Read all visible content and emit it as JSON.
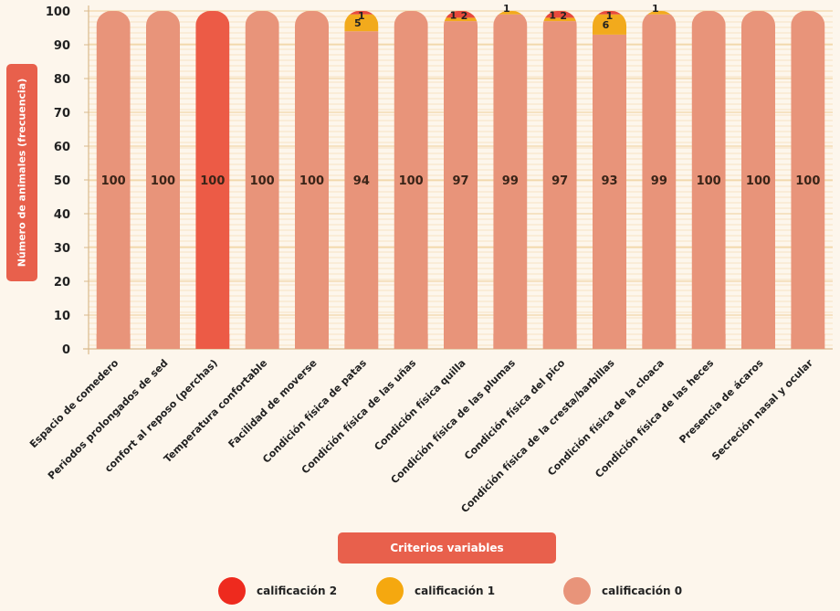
{
  "chart_data": {
    "type": "bar",
    "stacked": true,
    "categories": [
      "Espacio de comedero",
      "Periodos prolongados de sed",
      "confort al reposo (perchas)",
      "Temperatura confortable",
      "Facilidad de moverse",
      "Condición física de patas",
      "Condición física de las uñas",
      "Condición física quilla",
      "Condición física de las plumas",
      "Condición física del pico",
      "Condición física de la cresta/barbillas",
      "Condición física de la cloaca",
      "Condición física de las heces",
      "Presencia de ácaros",
      "Secreción nasal y ocular"
    ],
    "series": [
      {
        "name": "calificación 0",
        "color": "#e8947a",
        "values": [
          100,
          100,
          100,
          100,
          100,
          94,
          100,
          97,
          99,
          97,
          93,
          99,
          100,
          100,
          100
        ]
      },
      {
        "name": "calificación 1",
        "color": "#f2aa1c",
        "values": [
          0,
          0,
          0,
          0,
          0,
          5,
          0,
          1,
          1,
          1,
          6,
          1,
          0,
          0,
          0
        ]
      },
      {
        "name": "calificación 2",
        "color": "#e84a3c",
        "values": [
          0,
          0,
          0,
          0,
          0,
          1,
          0,
          2,
          0,
          2,
          1,
          0,
          0,
          0,
          0
        ]
      }
    ],
    "highlight_category_color": "#ec5b46",
    "yticks": [
      0,
      10,
      20,
      30,
      40,
      50,
      60,
      70,
      80,
      90,
      100
    ],
    "ylim": [
      0,
      100
    ],
    "ylabel": "Número de animales (frecuencia)",
    "xlabel": "Criterios variables",
    "grid": true,
    "legend_position": "bottom"
  },
  "legend": [
    {
      "label": "calificación 2",
      "color": "#ee2a1e"
    },
    {
      "label": "calificación 1",
      "color": "#f5a80f"
    },
    {
      "label": "calificación 0",
      "color": "#e8947a"
    }
  ]
}
